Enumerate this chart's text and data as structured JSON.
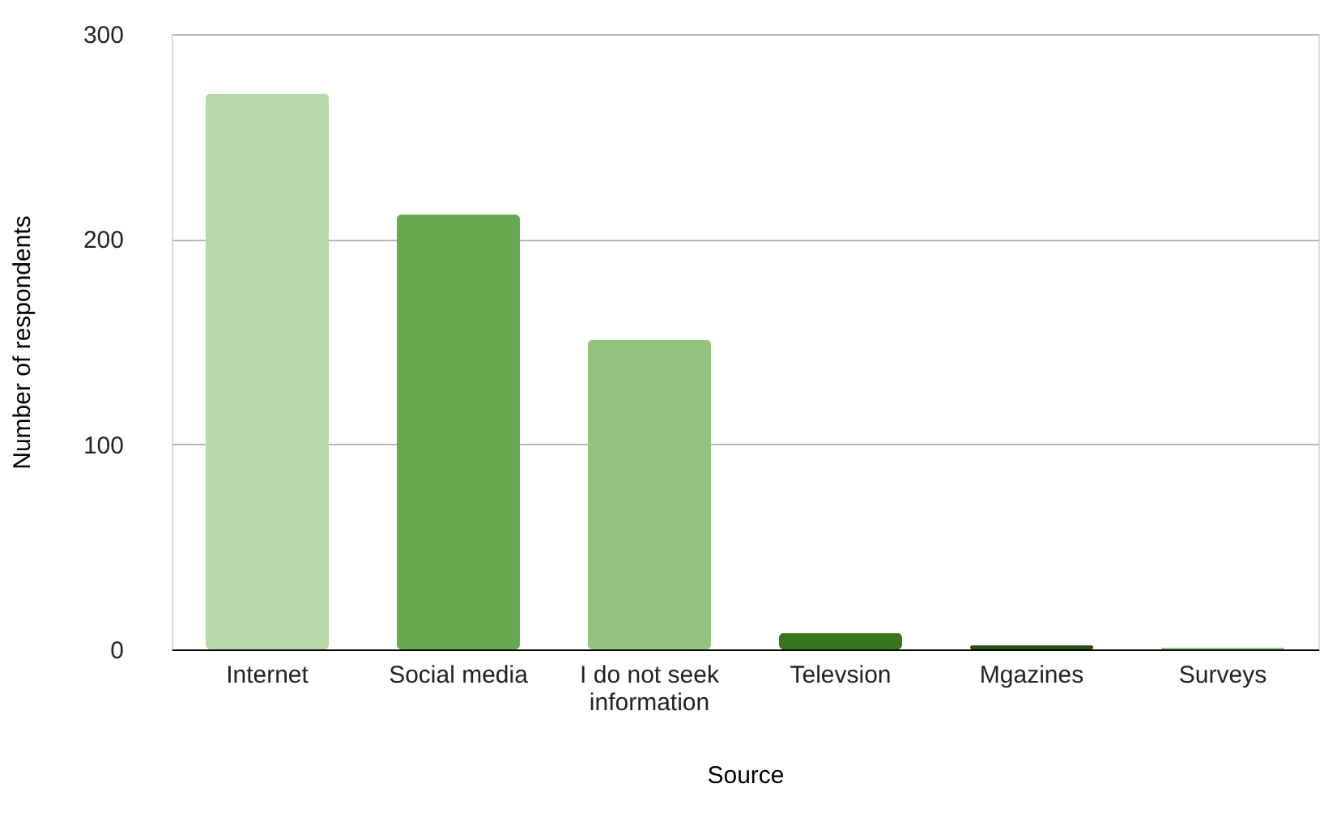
{
  "chart_data": {
    "type": "bar",
    "xlabel": "Source",
    "ylabel": "Number of respondents",
    "categories": [
      "Internet",
      "Social media",
      "I do not seek information",
      "Televsion",
      "Mgazines",
      "Surveys"
    ],
    "values": [
      271,
      212,
      151,
      8,
      2,
      1
    ],
    "colors": [
      "#b6d7a8",
      "#6aa84f",
      "#93c47d",
      "#38761d",
      "#274e13",
      "#93c47d"
    ],
    "ylim": [
      0,
      300
    ],
    "yticks": [
      0,
      100,
      200,
      300
    ],
    "grid": "y"
  }
}
